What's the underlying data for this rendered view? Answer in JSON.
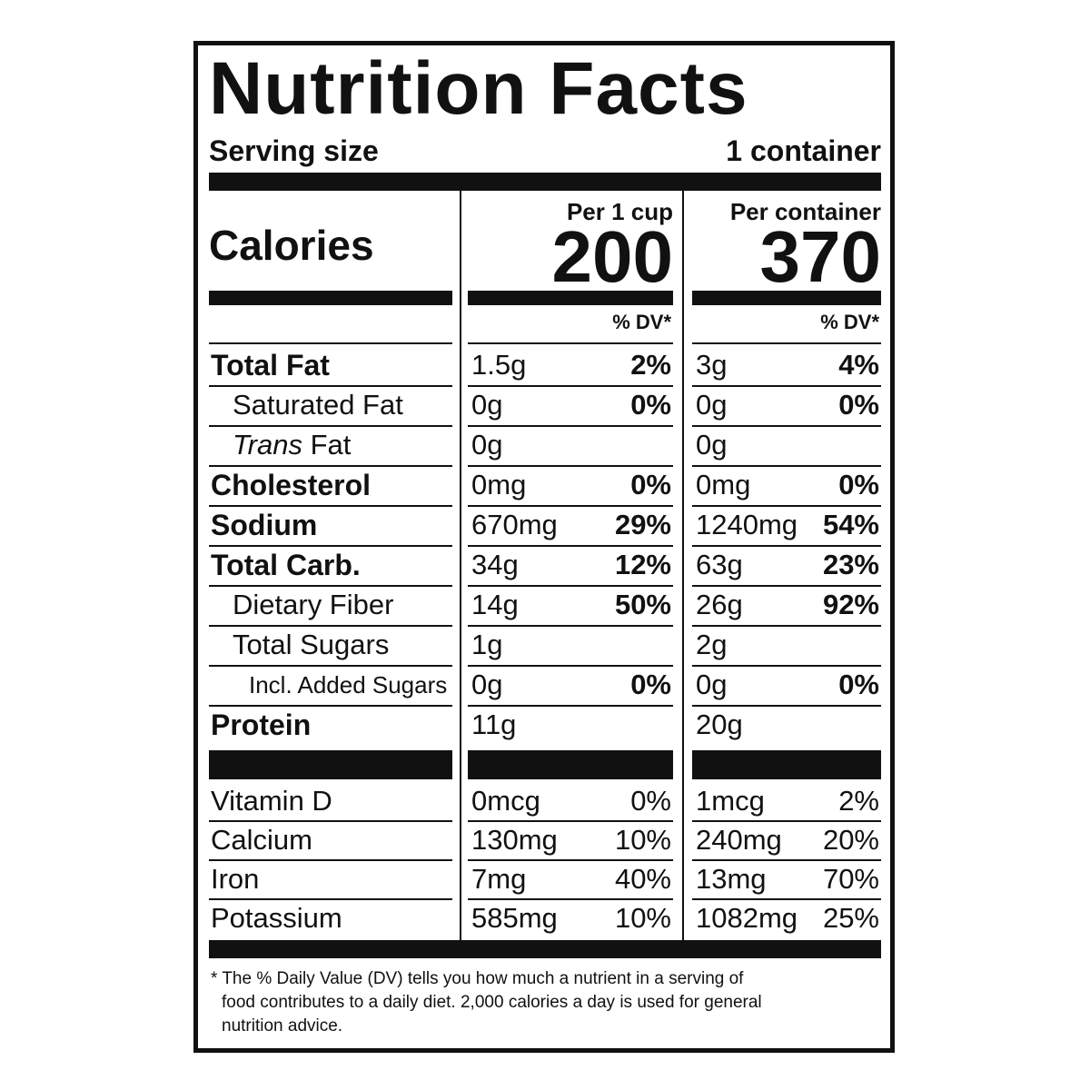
{
  "title": "Nutrition Facts",
  "serving": {
    "label": "Serving size",
    "value": "1 container"
  },
  "calories_label": "Calories",
  "columns": [
    {
      "header": "Per 1 cup",
      "calories": "200",
      "dv_header": "% DV*"
    },
    {
      "header": "Per container",
      "calories": "370",
      "dv_header": "% DV*"
    }
  ],
  "nutrients": [
    {
      "name": "Total Fat",
      "level": "main",
      "values": [
        [
          "1.5g",
          "2%"
        ],
        [
          "3g",
          "4%"
        ]
      ]
    },
    {
      "name": "Saturated Fat",
      "level": "sub",
      "values": [
        [
          "0g",
          "0%"
        ],
        [
          "0g",
          "0%"
        ]
      ]
    },
    {
      "name_italic": "Trans",
      "name": "Fat",
      "level": "sub",
      "values": [
        [
          "0g"
        ],
        [
          "0g"
        ]
      ]
    },
    {
      "name": "Cholesterol",
      "level": "main",
      "values": [
        [
          "0mg",
          "0%"
        ],
        [
          "0mg",
          "0%"
        ]
      ]
    },
    {
      "name": "Sodium",
      "level": "main",
      "values": [
        [
          "670mg",
          "29%"
        ],
        [
          "1240mg",
          "54%"
        ]
      ]
    },
    {
      "name": "Total Carb.",
      "level": "main",
      "values": [
        [
          "34g",
          "12%"
        ],
        [
          "63g",
          "23%"
        ]
      ]
    },
    {
      "name": "Dietary Fiber",
      "level": "sub",
      "values": [
        [
          "14g",
          "50%"
        ],
        [
          "26g",
          "92%"
        ]
      ]
    },
    {
      "name": "Total Sugars",
      "level": "sub",
      "values": [
        [
          "1g"
        ],
        [
          "2g"
        ]
      ]
    },
    {
      "name": "Incl. Added Sugars",
      "level": "subsub",
      "values": [
        [
          "0g",
          "0%"
        ],
        [
          "0g",
          "0%"
        ]
      ]
    },
    {
      "name": "Protein",
      "level": "main",
      "values": [
        [
          "11g"
        ],
        [
          "20g"
        ]
      ]
    }
  ],
  "vitamins": [
    {
      "name": "Vitamin D",
      "values": [
        [
          "0mcg",
          "0%"
        ],
        [
          "1mcg",
          "2%"
        ]
      ]
    },
    {
      "name": "Calcium",
      "values": [
        [
          "130mg",
          "10%"
        ],
        [
          "240mg",
          "20%"
        ]
      ]
    },
    {
      "name": "Iron",
      "values": [
        [
          "7mg",
          "40%"
        ],
        [
          "13mg",
          "70%"
        ]
      ]
    },
    {
      "name": "Potassium",
      "values": [
        [
          "585mg",
          "10%"
        ],
        [
          "1082mg",
          "25%"
        ]
      ]
    }
  ],
  "footnote": [
    "* The % Daily Value (DV) tells you how much a nutrient in a serving of",
    "food contributes to a daily diet. 2,000 calories a day is used for general",
    "nutrition advice."
  ]
}
